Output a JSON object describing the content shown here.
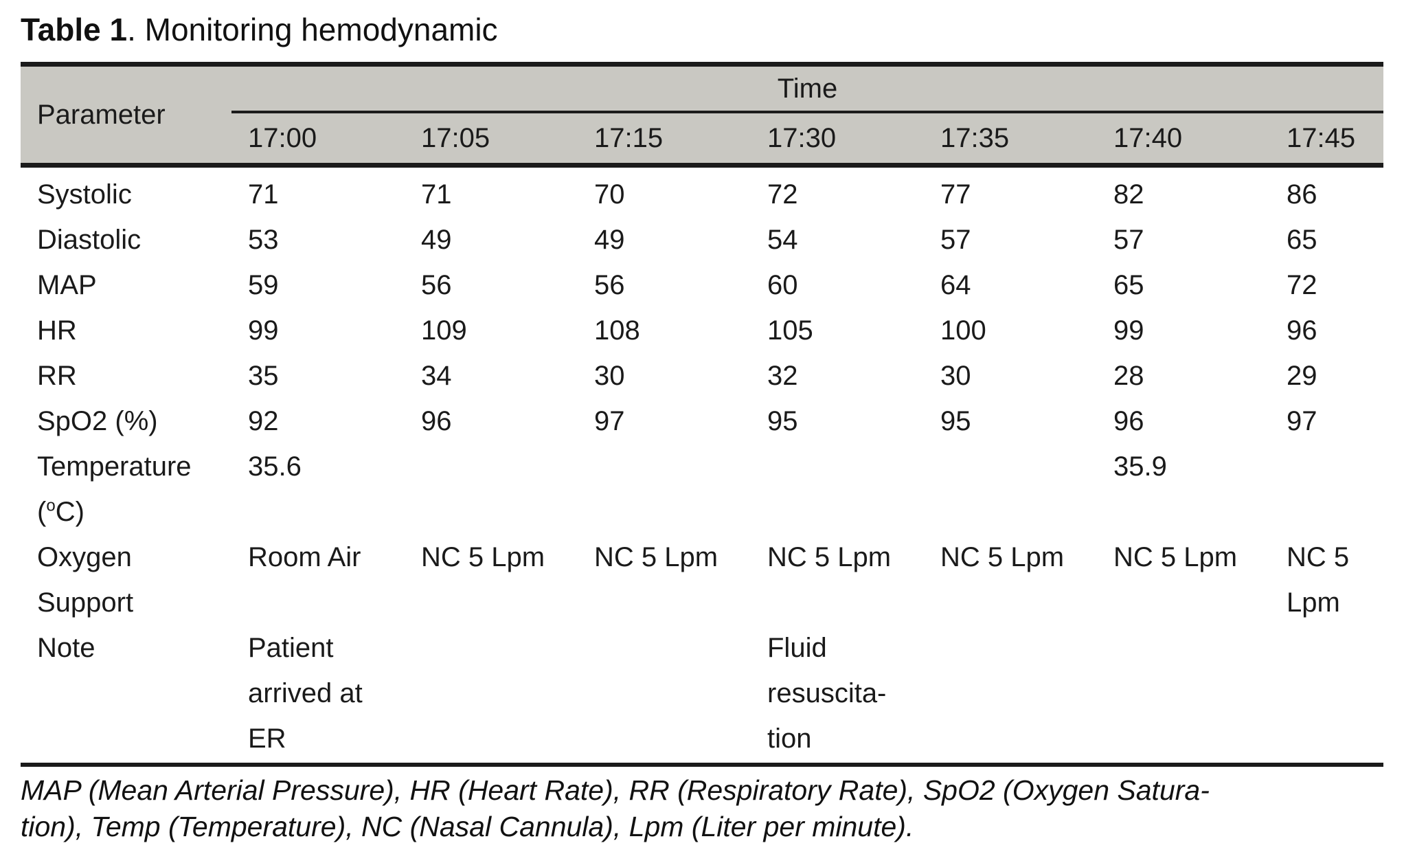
{
  "title": {
    "label": "Table 1",
    "text": ". Monitoring hemodynamic"
  },
  "colors": {
    "header_background": "#c9c8c2",
    "border": "#1b1b1b",
    "text": "#1a1a1a"
  },
  "table": {
    "param_header": "Parameter",
    "time_header": "Time",
    "times": [
      "17:00",
      "17:05",
      "17:15",
      "17:30",
      "17:35",
      "17:40",
      "17:45"
    ],
    "rows": [
      {
        "key": "systolic",
        "label": "Systolic",
        "values": [
          "71",
          "71",
          "70",
          "72",
          "77",
          "82",
          "86"
        ]
      },
      {
        "key": "diastolic",
        "label": "Diastolic",
        "values": [
          "53",
          "49",
          "49",
          "54",
          "57",
          "57",
          "65"
        ]
      },
      {
        "key": "map",
        "label": "MAP",
        "values": [
          "59",
          "56",
          "56",
          "60",
          "64",
          "65",
          "72"
        ]
      },
      {
        "key": "hr",
        "label": "HR",
        "values": [
          "99",
          "109",
          "108",
          "105",
          "100",
          "99",
          "96"
        ]
      },
      {
        "key": "rr",
        "label": "RR",
        "values": [
          "35",
          "34",
          "30",
          "32",
          "30",
          "28",
          "29"
        ]
      },
      {
        "key": "spo2",
        "label": "SpO2 (%)",
        "values": [
          "92",
          "96",
          "97",
          "95",
          "95",
          "96",
          "97"
        ]
      },
      {
        "key": "temperature",
        "label_parts": {
          "l1": "Temperature",
          "l2a": "(",
          "sup": "o",
          "l2b": "C)"
        },
        "values": [
          "35.6",
          "",
          "",
          "",
          "",
          "35.9",
          ""
        ]
      },
      {
        "key": "oxygen-support",
        "label": "Oxygen\nSupport",
        "values": [
          "Room Air",
          "NC 5 Lpm",
          "NC 5 Lpm",
          "NC 5 Lpm",
          "NC 5 Lpm",
          "NC 5 Lpm",
          "NC 5\nLpm"
        ]
      },
      {
        "key": "note",
        "label": "Note",
        "values": [
          "Patient\narrived at\nER",
          "",
          "",
          "Fluid\nresuscita-\ntion",
          "",
          "",
          ""
        ]
      }
    ]
  },
  "footnote": "MAP (Mean Arterial Pressure), HR (Heart Rate), RR (Respiratory Rate), SpO2 (Oxygen Satura-\ntion), Temp (Temperature), NC (Nasal Cannula), Lpm (Liter per minute)."
}
